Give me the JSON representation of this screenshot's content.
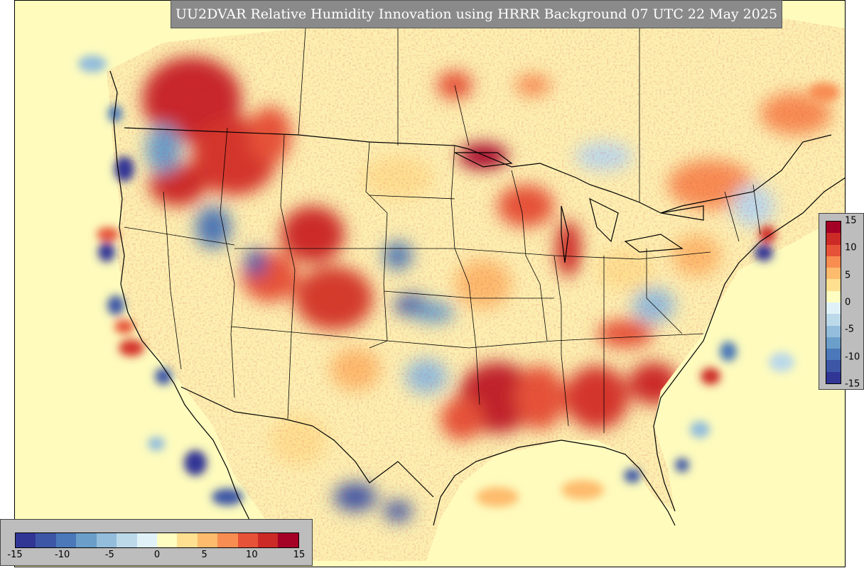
{
  "title": "UU2DVAR Relative Humidity Innovation using HRRR Background 07 UTC 22 May 2025",
  "colorbar": {
    "min": -15,
    "max": 15,
    "tick_labels_horizontal": [
      "-15",
      "-10",
      "-5",
      "0",
      "5",
      "10",
      "15"
    ],
    "tick_values_horizontal": [
      -15,
      -10,
      -5,
      0,
      5,
      10,
      15
    ],
    "tick_labels_vertical": [
      "15",
      "10",
      "5",
      "0",
      "-5",
      "-10",
      "-15"
    ],
    "tick_values_vertical": [
      15,
      10,
      5,
      0,
      -5,
      -10,
      -15
    ],
    "colors": [
      "#313695",
      "#3d57a6",
      "#4a78b8",
      "#6b9ec9",
      "#93bddb",
      "#bcd9ea",
      "#e0f2f7",
      "#fdfec0",
      "#fee090",
      "#fdbb6d",
      "#f88d52",
      "#e65238",
      "#cc2a27",
      "#a50026"
    ]
  },
  "map_colors": {
    "ocean": "#fefbbd",
    "neutral": "#fdf3b4",
    "boundary": "#000000"
  }
}
